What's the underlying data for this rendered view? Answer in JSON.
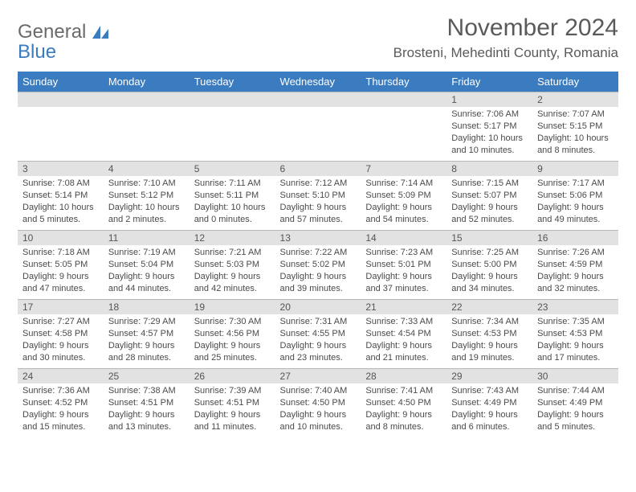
{
  "logo": {
    "word1": "General",
    "word2": "Blue"
  },
  "title": "November 2024",
  "location": "Brosteni, Mehedinti County, Romania",
  "colors": {
    "header_bg": "#3b7bbf",
    "header_text": "#ffffff",
    "daynum_bg": "#e2e2e2",
    "border": "#b8b8b8",
    "text": "#4a4a4a",
    "logo_gray": "#6a6a6a",
    "logo_blue": "#3b7bbf",
    "page_bg": "#ffffff"
  },
  "typography": {
    "title_fontsize": 30,
    "location_fontsize": 17,
    "header_fontsize": 13,
    "cell_fontsize": 11,
    "daynum_fontsize": 12
  },
  "layout": {
    "columns": 7,
    "rows": 5,
    "first_day_column": 5
  },
  "weekdays": [
    "Sunday",
    "Monday",
    "Tuesday",
    "Wednesday",
    "Thursday",
    "Friday",
    "Saturday"
  ],
  "days": [
    {
      "n": 1,
      "sunrise": "7:06 AM",
      "sunset": "5:17 PM",
      "daylight": "10 hours and 10 minutes."
    },
    {
      "n": 2,
      "sunrise": "7:07 AM",
      "sunset": "5:15 PM",
      "daylight": "10 hours and 8 minutes."
    },
    {
      "n": 3,
      "sunrise": "7:08 AM",
      "sunset": "5:14 PM",
      "daylight": "10 hours and 5 minutes."
    },
    {
      "n": 4,
      "sunrise": "7:10 AM",
      "sunset": "5:12 PM",
      "daylight": "10 hours and 2 minutes."
    },
    {
      "n": 5,
      "sunrise": "7:11 AM",
      "sunset": "5:11 PM",
      "daylight": "10 hours and 0 minutes."
    },
    {
      "n": 6,
      "sunrise": "7:12 AM",
      "sunset": "5:10 PM",
      "daylight": "9 hours and 57 minutes."
    },
    {
      "n": 7,
      "sunrise": "7:14 AM",
      "sunset": "5:09 PM",
      "daylight": "9 hours and 54 minutes."
    },
    {
      "n": 8,
      "sunrise": "7:15 AM",
      "sunset": "5:07 PM",
      "daylight": "9 hours and 52 minutes."
    },
    {
      "n": 9,
      "sunrise": "7:17 AM",
      "sunset": "5:06 PM",
      "daylight": "9 hours and 49 minutes."
    },
    {
      "n": 10,
      "sunrise": "7:18 AM",
      "sunset": "5:05 PM",
      "daylight": "9 hours and 47 minutes."
    },
    {
      "n": 11,
      "sunrise": "7:19 AM",
      "sunset": "5:04 PM",
      "daylight": "9 hours and 44 minutes."
    },
    {
      "n": 12,
      "sunrise": "7:21 AM",
      "sunset": "5:03 PM",
      "daylight": "9 hours and 42 minutes."
    },
    {
      "n": 13,
      "sunrise": "7:22 AM",
      "sunset": "5:02 PM",
      "daylight": "9 hours and 39 minutes."
    },
    {
      "n": 14,
      "sunrise": "7:23 AM",
      "sunset": "5:01 PM",
      "daylight": "9 hours and 37 minutes."
    },
    {
      "n": 15,
      "sunrise": "7:25 AM",
      "sunset": "5:00 PM",
      "daylight": "9 hours and 34 minutes."
    },
    {
      "n": 16,
      "sunrise": "7:26 AM",
      "sunset": "4:59 PM",
      "daylight": "9 hours and 32 minutes."
    },
    {
      "n": 17,
      "sunrise": "7:27 AM",
      "sunset": "4:58 PM",
      "daylight": "9 hours and 30 minutes."
    },
    {
      "n": 18,
      "sunrise": "7:29 AM",
      "sunset": "4:57 PM",
      "daylight": "9 hours and 28 minutes."
    },
    {
      "n": 19,
      "sunrise": "7:30 AM",
      "sunset": "4:56 PM",
      "daylight": "9 hours and 25 minutes."
    },
    {
      "n": 20,
      "sunrise": "7:31 AM",
      "sunset": "4:55 PM",
      "daylight": "9 hours and 23 minutes."
    },
    {
      "n": 21,
      "sunrise": "7:33 AM",
      "sunset": "4:54 PM",
      "daylight": "9 hours and 21 minutes."
    },
    {
      "n": 22,
      "sunrise": "7:34 AM",
      "sunset": "4:53 PM",
      "daylight": "9 hours and 19 minutes."
    },
    {
      "n": 23,
      "sunrise": "7:35 AM",
      "sunset": "4:53 PM",
      "daylight": "9 hours and 17 minutes."
    },
    {
      "n": 24,
      "sunrise": "7:36 AM",
      "sunset": "4:52 PM",
      "daylight": "9 hours and 15 minutes."
    },
    {
      "n": 25,
      "sunrise": "7:38 AM",
      "sunset": "4:51 PM",
      "daylight": "9 hours and 13 minutes."
    },
    {
      "n": 26,
      "sunrise": "7:39 AM",
      "sunset": "4:51 PM",
      "daylight": "9 hours and 11 minutes."
    },
    {
      "n": 27,
      "sunrise": "7:40 AM",
      "sunset": "4:50 PM",
      "daylight": "9 hours and 10 minutes."
    },
    {
      "n": 28,
      "sunrise": "7:41 AM",
      "sunset": "4:50 PM",
      "daylight": "9 hours and 8 minutes."
    },
    {
      "n": 29,
      "sunrise": "7:43 AM",
      "sunset": "4:49 PM",
      "daylight": "9 hours and 6 minutes."
    },
    {
      "n": 30,
      "sunrise": "7:44 AM",
      "sunset": "4:49 PM",
      "daylight": "9 hours and 5 minutes."
    }
  ]
}
